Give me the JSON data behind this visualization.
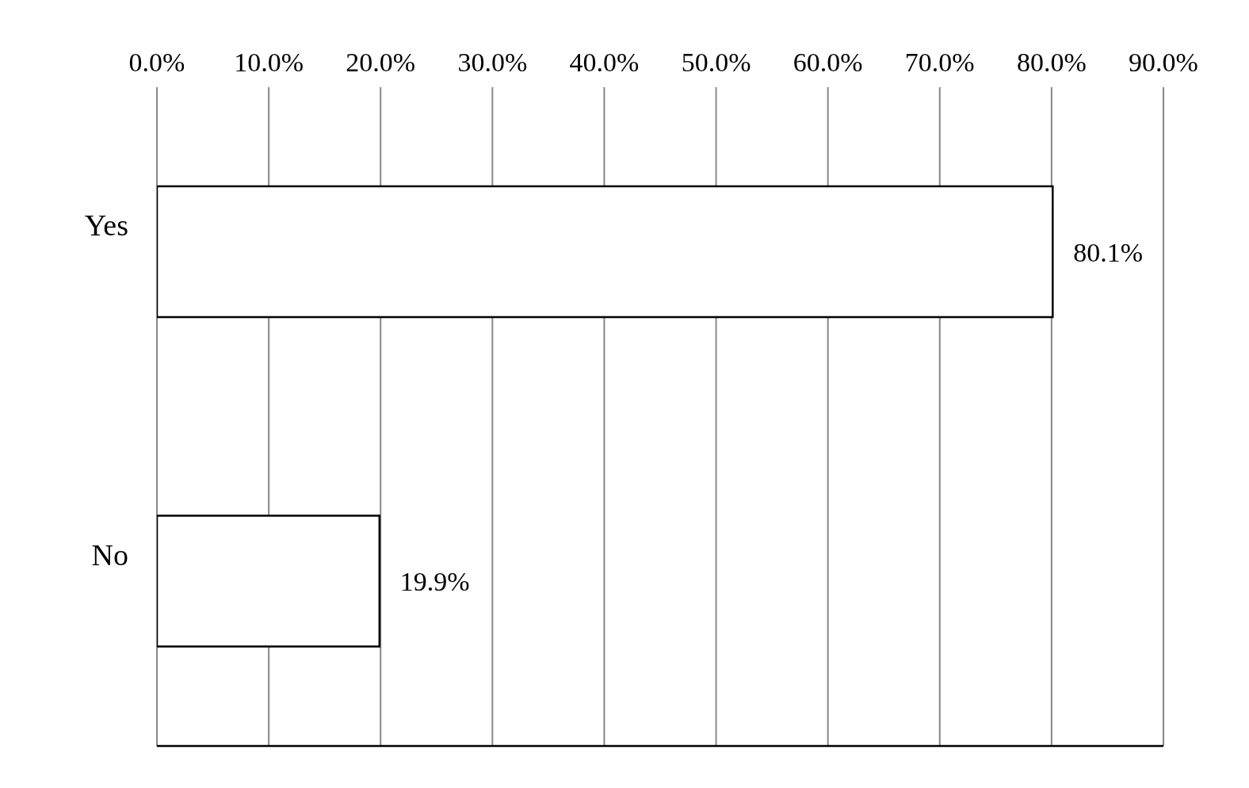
{
  "chart_data": {
    "type": "bar",
    "orientation": "horizontal",
    "categories": [
      "Yes",
      "No"
    ],
    "values": [
      80.1,
      19.9
    ],
    "value_labels": [
      "80.1%",
      "19.9%"
    ],
    "color": "#ffffff",
    "xlim": [
      0,
      90
    ],
    "xticks": [
      {
        "value": 0,
        "label": "0.0%"
      },
      {
        "value": 10,
        "label": "10.0%"
      },
      {
        "value": 20,
        "label": "20.0%"
      },
      {
        "value": 30,
        "label": "30.0%"
      },
      {
        "value": 40,
        "label": "40.0%"
      },
      {
        "value": 50,
        "label": "50.0%"
      },
      {
        "value": 60,
        "label": "60.0%"
      },
      {
        "value": 70,
        "label": "70.0%"
      },
      {
        "value": 80,
        "label": "80.0%"
      },
      {
        "value": 90,
        "label": "90.0%"
      }
    ],
    "grid": "x",
    "legend": false
  }
}
